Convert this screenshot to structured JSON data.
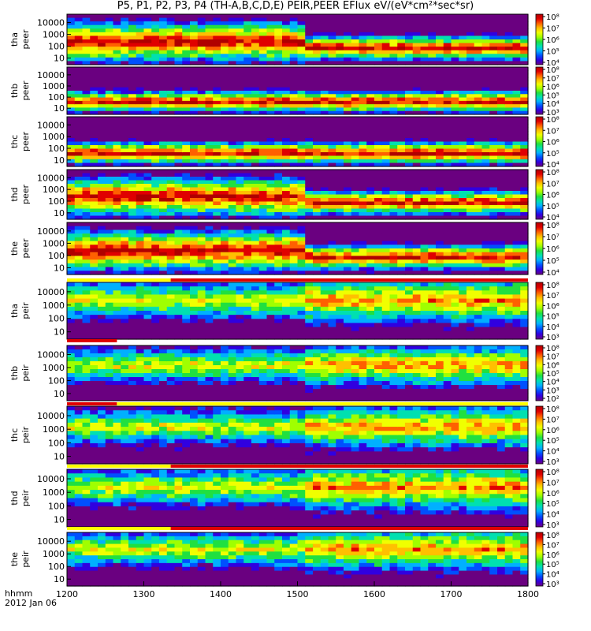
{
  "title": "P5, P1, P2, P3, P4 (TH-A,B,C,D,E) PEIR,PEER EFlux eV/(eV*cm²*sec*sr)",
  "footer": {
    "line1": "hhmm",
    "line2": "2012 Jan 06"
  },
  "colors": {
    "colormap": [
      "#6a0080",
      "#3000e0",
      "#0050ff",
      "#00b0ff",
      "#00e0b0",
      "#20e040",
      "#a0ff00",
      "#f0ff00",
      "#ffc000",
      "#ff6000",
      "#e00000",
      "#b00000"
    ],
    "flag_red": "#e00000",
    "flag_yellow": "#ffff00",
    "black": "#000000"
  },
  "chart_data": {
    "type": "heatmap",
    "x_ticks": [
      "1200",
      "1300",
      "1400",
      "1500",
      "1600",
      "1700",
      "1800"
    ],
    "xlim": [
      1200,
      1800
    ],
    "y_scale": "log",
    "y_ticks": [
      "10",
      "100",
      "1000",
      "10000"
    ],
    "panels": [
      {
        "label1": "tha",
        "label2": "peer",
        "yticks": [
          "10",
          "100",
          "1000",
          "10000"
        ],
        "cticks": [
          "10⁴",
          "10⁵",
          "10⁶",
          "10⁷",
          "10⁸"
        ],
        "flag_before": null
      },
      {
        "label1": "thb",
        "label2": "peer",
        "yticks": [
          "10",
          "100",
          "1000",
          "10000"
        ],
        "cticks": [
          "10³",
          "10⁴",
          "10⁵",
          "10⁶",
          "10⁷",
          "10⁸"
        ],
        "flag_before": null
      },
      {
        "label1": "thc",
        "label2": "peer",
        "yticks": [
          "10",
          "100",
          "1000",
          "10000"
        ],
        "cticks": [
          "10⁴",
          "10⁵",
          "10⁶",
          "10⁷",
          "10⁸"
        ],
        "flag_before": null
      },
      {
        "label1": "thd",
        "label2": "peer",
        "yticks": [
          "10",
          "100",
          "1000",
          "10000"
        ],
        "cticks": [
          "10⁴",
          "10⁵",
          "10⁶",
          "10⁷",
          "10⁸"
        ],
        "flag_before": null
      },
      {
        "label1": "the",
        "label2": "peer",
        "yticks": [
          "10",
          "100",
          "1000",
          "10000"
        ],
        "cticks": [
          "10⁴",
          "10⁵",
          "10⁶",
          "10⁷",
          "10⁸"
        ],
        "flag_before": null
      },
      {
        "label1": "tha",
        "label2": "peir",
        "yticks": [
          "10",
          "100",
          "1000",
          "10000"
        ],
        "cticks": [
          "10³",
          "10⁴",
          "10⁵",
          "10⁶",
          "10⁷",
          "10⁸"
        ],
        "flag_before": {
          "yellow_until": 1335,
          "red_from": 1335
        }
      },
      {
        "label1": "thb",
        "label2": "peir",
        "yticks": [
          "10",
          "100",
          "1000",
          "10000"
        ],
        "cticks": [
          "10²",
          "10³",
          "10⁴",
          "10⁵",
          "10⁶",
          "10⁷",
          "10⁸"
        ],
        "flag_before": {
          "red_until": 1265
        }
      },
      {
        "label1": "thc",
        "label2": "peir",
        "yticks": [
          "10",
          "100",
          "1000",
          "10000"
        ],
        "cticks": [
          "10³",
          "10⁴",
          "10⁵",
          "10⁶",
          "10⁷",
          "10⁸"
        ],
        "flag_before": {
          "red_until": 1265,
          "yellow_from": 1265
        }
      },
      {
        "label1": "thd",
        "label2": "peir",
        "yticks": [
          "10",
          "100",
          "1000",
          "10000"
        ],
        "cticks": [
          "10³",
          "10⁴",
          "10⁵",
          "10⁶",
          "10⁷",
          "10⁸"
        ],
        "flag_before": {
          "yellow_until": 1335,
          "red_from": 1335
        }
      },
      {
        "label1": "the",
        "label2": "peir",
        "yticks": [
          "10",
          "100",
          "1000",
          "10000"
        ],
        "cticks": [
          "10³",
          "10⁴",
          "10⁵",
          "10⁶",
          "10⁷",
          "10⁸"
        ],
        "flag_before": {
          "yellow_until": 1335,
          "red_from": 1335
        }
      }
    ]
  }
}
